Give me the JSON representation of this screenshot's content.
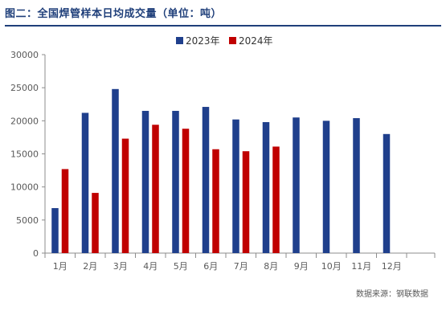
{
  "title": "图二：全国焊管样本日均成交量（单位：吨）",
  "source": "数据来源：钢联数据",
  "chart_data": {
    "type": "bar",
    "categories": [
      "1月",
      "2月",
      "3月",
      "4月",
      "5月",
      "6月",
      "7月",
      "8月",
      "9月",
      "10月",
      "11月",
      "12月"
    ],
    "series": [
      {
        "name": "2023年",
        "color": "#1f3f8c",
        "values": [
          6800,
          21200,
          24800,
          21500,
          21500,
          22100,
          20200,
          19800,
          20500,
          20000,
          20400,
          18000
        ]
      },
      {
        "name": "2024年",
        "color": "#c00000",
        "values": [
          12700,
          9100,
          17300,
          19400,
          18800,
          15700,
          15400,
          16100,
          null,
          null,
          null,
          null
        ]
      }
    ],
    "ylim": [
      0,
      30000
    ],
    "yticks": [
      0,
      5000,
      10000,
      15000,
      20000,
      25000,
      30000
    ],
    "legend_position": "top-center",
    "grid": false
  }
}
